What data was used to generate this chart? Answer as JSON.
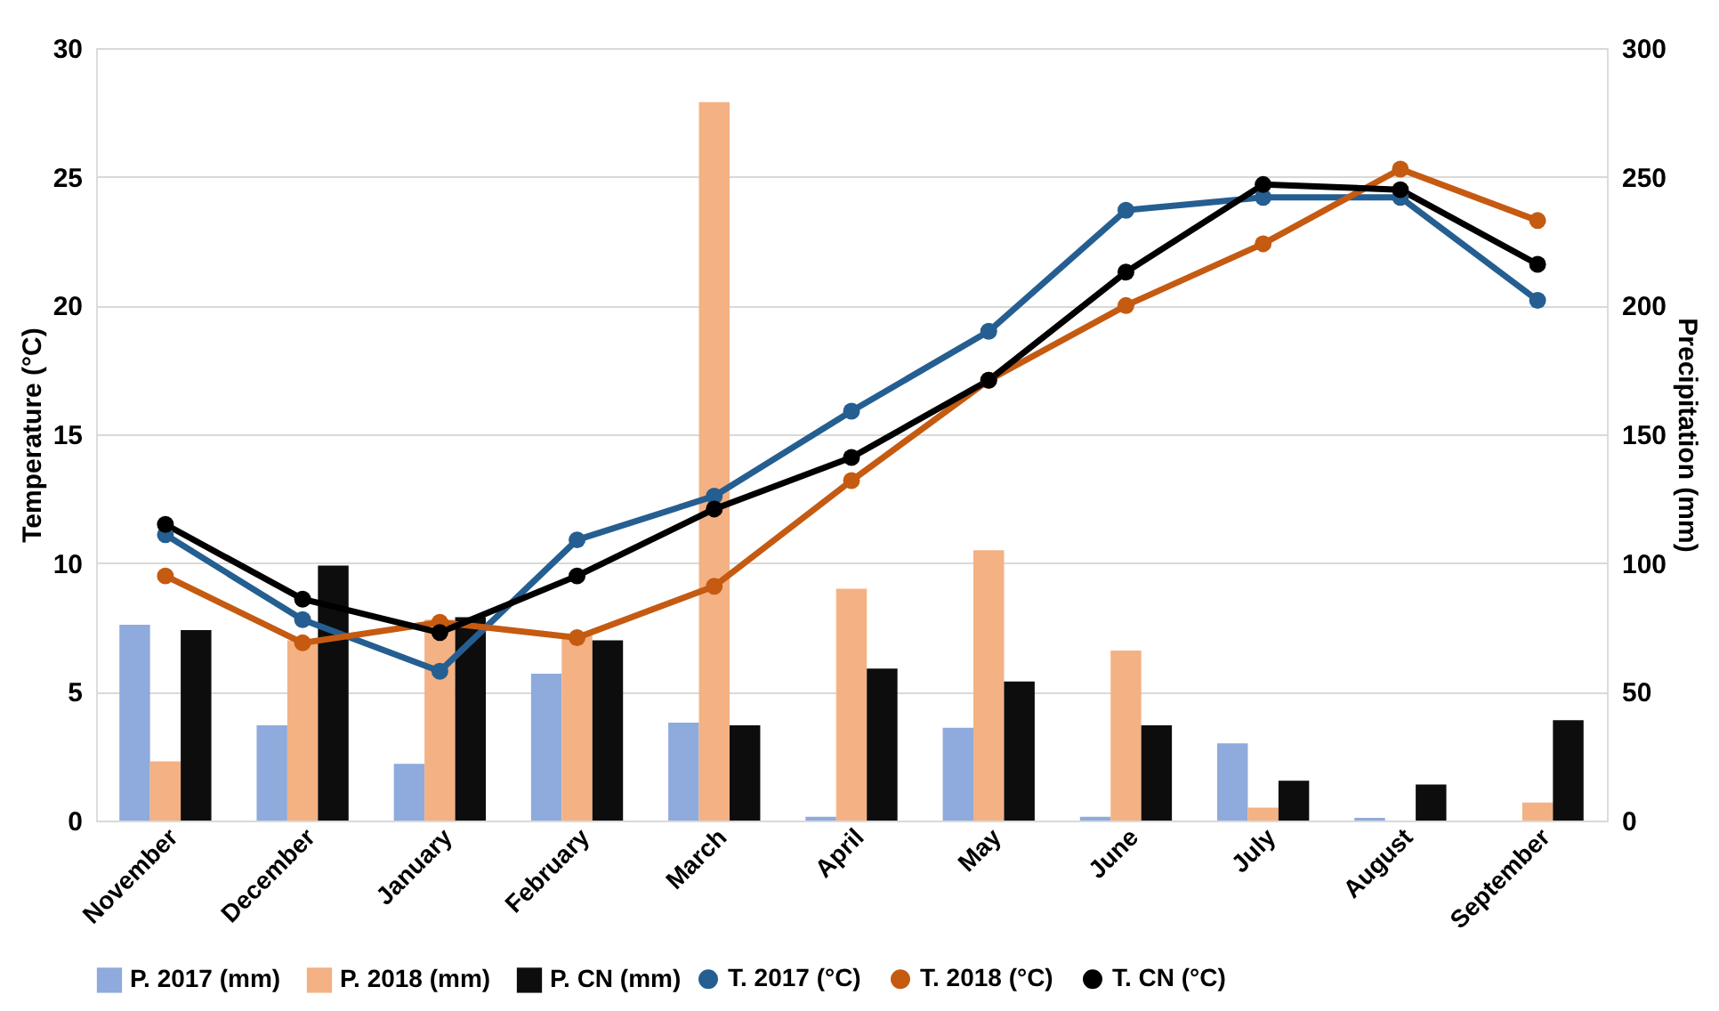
{
  "chart_data": {
    "type": "bar",
    "ylabel": "Temperature (°C)",
    "y2label": "Precipitation (mm)",
    "categories": [
      "November",
      "December",
      "January",
      "February",
      "March",
      "April",
      "May",
      "June",
      "July",
      "August",
      "September"
    ],
    "series": [
      {
        "name": "P. 2017 (mm)",
        "axis": "y2",
        "color": "#8faadc",
        "values": [
          76,
          37,
          22,
          57,
          38,
          1.5,
          36,
          1.5,
          30,
          1,
          0
        ]
      },
      {
        "name": "P. 2018 (mm)",
        "axis": "y2",
        "color": "#f4b183",
        "values": [
          23,
          70,
          78,
          72,
          279,
          90,
          105,
          66,
          5,
          0,
          7
        ]
      },
      {
        "name": "P. CN (mm)",
        "axis": "y2",
        "color": "#0d0d0d",
        "values": [
          74,
          99,
          79,
          70,
          37,
          59,
          54,
          37,
          15.5,
          14,
          39
        ]
      },
      {
        "name": "T. 2017 (°C)",
        "type": "line",
        "axis": "y",
        "color": "#255e91",
        "values": [
          11.1,
          7.8,
          5.8,
          10.9,
          12.6,
          15.9,
          19.0,
          23.7,
          24.2,
          24.2,
          20.2
        ]
      },
      {
        "name": "T. 2018 (°C)",
        "type": "line",
        "axis": "y",
        "color": "#c55a11",
        "values": [
          9.5,
          6.9,
          7.7,
          7.1,
          9.1,
          13.2,
          17.1,
          20.0,
          22.4,
          25.3,
          23.3
        ]
      },
      {
        "name": "T. CN (°C)",
        "type": "line",
        "axis": "y",
        "color": "#000000",
        "values": [
          11.5,
          8.6,
          7.3,
          9.5,
          12.1,
          14.1,
          17.1,
          21.3,
          24.7,
          24.5,
          21.6
        ]
      }
    ],
    "ylim": [
      0,
      30
    ],
    "yticks": [
      0,
      5,
      10,
      15,
      20,
      25,
      30
    ],
    "y2lim": [
      0,
      300
    ],
    "y2ticks": [
      0,
      50,
      100,
      150,
      200,
      250,
      300
    ],
    "grid": "y",
    "legend": "bottom",
    "marker": "circle",
    "line_style": "solid"
  }
}
